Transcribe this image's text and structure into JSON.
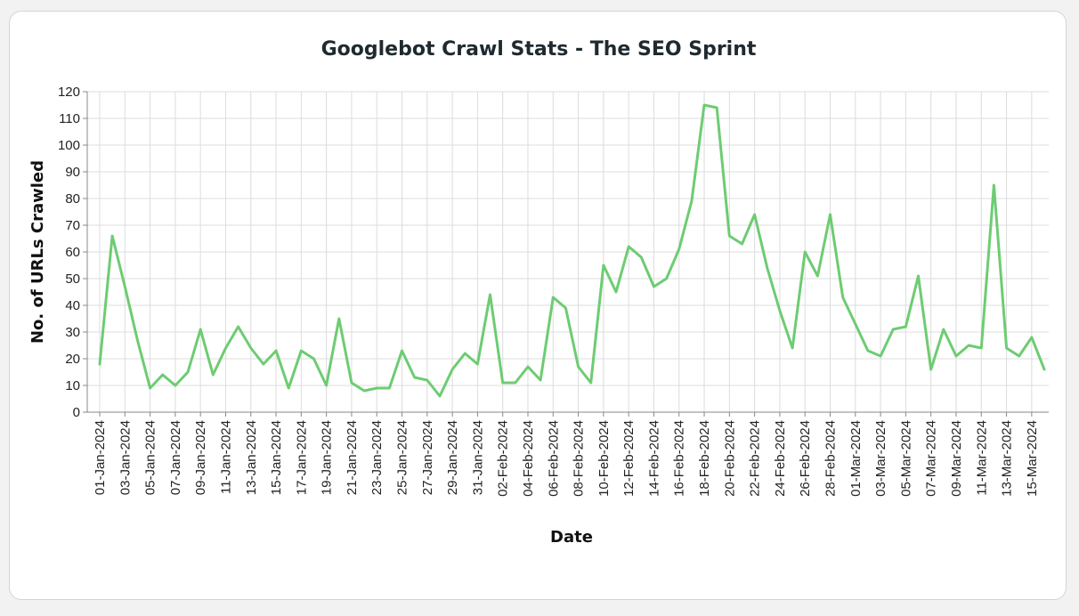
{
  "chart_data": {
    "type": "line",
    "title": "Googlebot Crawl Stats - The SEO Sprint",
    "xlabel": "Date",
    "ylabel": "No. of URLs Crawled",
    "ylim": [
      0,
      120
    ],
    "yticks": [
      0,
      10,
      20,
      30,
      40,
      50,
      60,
      70,
      80,
      90,
      100,
      110,
      120
    ],
    "grid": true,
    "line_color": "#6dcc72",
    "x": [
      "01-Jan-2024",
      "02-Jan-2024",
      "03-Jan-2024",
      "04-Jan-2024",
      "05-Jan-2024",
      "06-Jan-2024",
      "07-Jan-2024",
      "08-Jan-2024",
      "09-Jan-2024",
      "10-Jan-2024",
      "11-Jan-2024",
      "12-Jan-2024",
      "13-Jan-2024",
      "14-Jan-2024",
      "15-Jan-2024",
      "16-Jan-2024",
      "17-Jan-2024",
      "18-Jan-2024",
      "19-Jan-2024",
      "20-Jan-2024",
      "21-Jan-2024",
      "22-Jan-2024",
      "23-Jan-2024",
      "24-Jan-2024",
      "25-Jan-2024",
      "26-Jan-2024",
      "27-Jan-2024",
      "28-Jan-2024",
      "29-Jan-2024",
      "30-Jan-2024",
      "31-Jan-2024",
      "01-Feb-2024",
      "02-Feb-2024",
      "03-Feb-2024",
      "04-Feb-2024",
      "05-Feb-2024",
      "06-Feb-2024",
      "07-Feb-2024",
      "08-Feb-2024",
      "09-Feb-2024",
      "10-Feb-2024",
      "11-Feb-2024",
      "12-Feb-2024",
      "13-Feb-2024",
      "14-Feb-2024",
      "15-Feb-2024",
      "16-Feb-2024",
      "17-Feb-2024",
      "18-Feb-2024",
      "19-Feb-2024",
      "20-Feb-2024",
      "21-Feb-2024",
      "22-Feb-2024",
      "23-Feb-2024",
      "24-Feb-2024",
      "25-Feb-2024",
      "26-Feb-2024",
      "27-Feb-2024",
      "28-Feb-2024",
      "29-Feb-2024",
      "01-Mar-2024",
      "02-Mar-2024",
      "03-Mar-2024",
      "04-Mar-2024",
      "05-Mar-2024",
      "06-Mar-2024",
      "07-Mar-2024",
      "08-Mar-2024",
      "09-Mar-2024",
      "10-Mar-2024",
      "11-Mar-2024",
      "12-Mar-2024",
      "13-Mar-2024",
      "14-Mar-2024",
      "15-Mar-2024",
      "16-Mar-2024"
    ],
    "tick_labels": [
      "01-Jan-2024",
      "03-Jan-2024",
      "05-Jan-2024",
      "07-Jan-2024",
      "09-Jan-2024",
      "11-Jan-2024",
      "13-Jan-2024",
      "15-Jan-2024",
      "17-Jan-2024",
      "19-Jan-2024",
      "21-Jan-2024",
      "23-Jan-2024",
      "25-Jan-2024",
      "27-Jan-2024",
      "29-Jan-2024",
      "31-Jan-2024",
      "02-Feb-2024",
      "04-Feb-2024",
      "06-Feb-2024",
      "08-Feb-2024",
      "10-Feb-2024",
      "12-Feb-2024",
      "14-Feb-2024",
      "16-Feb-2024",
      "18-Feb-2024",
      "20-Feb-2024",
      "22-Feb-2024",
      "24-Feb-2024",
      "26-Feb-2024",
      "28-Feb-2024",
      "01-Mar-2024",
      "03-Mar-2024",
      "05-Mar-2024",
      "07-Mar-2024",
      "09-Mar-2024",
      "11-Mar-2024",
      "13-Mar-2024",
      "15-Mar-2024"
    ],
    "y": [
      18,
      66,
      47,
      27,
      9,
      14,
      10,
      15,
      31,
      14,
      24,
      32,
      24,
      18,
      23,
      9,
      23,
      20,
      10,
      35,
      11,
      8,
      9,
      9,
      23,
      13,
      12,
      6,
      16,
      22,
      18,
      44,
      11,
      11,
      17,
      12,
      43,
      39,
      17,
      11,
      55,
      45,
      62,
      58,
      47,
      50,
      61,
      79,
      115,
      114,
      66,
      63,
      74,
      54,
      38,
      24,
      60,
      51,
      74,
      43,
      33,
      23,
      21,
      31,
      32,
      51,
      16,
      31,
      21,
      25,
      24,
      85,
      24,
      21,
      28,
      16
    ]
  }
}
